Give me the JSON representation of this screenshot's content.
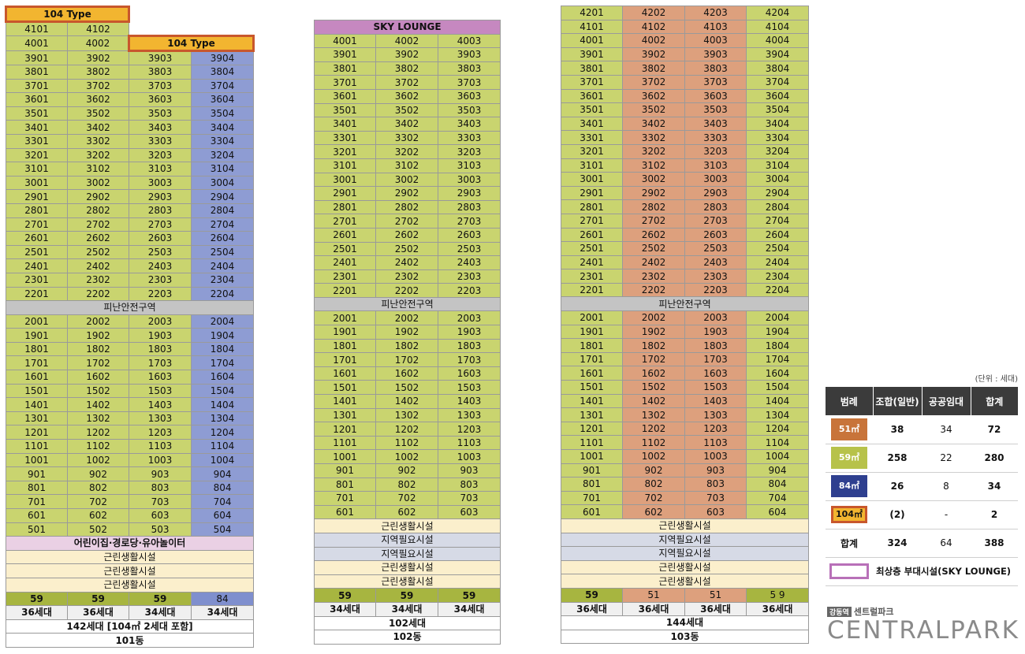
{
  "buildings": {
    "b101": {
      "type104_top": "104 Type",
      "type104_sub": "104 Type",
      "floor41": [
        "4101",
        "4102"
      ],
      "floor40": [
        "4001",
        "4002"
      ],
      "upper": [
        [
          "3901",
          "3902",
          "3903",
          "3904"
        ],
        [
          "3801",
          "3802",
          "3803",
          "3804"
        ],
        [
          "3701",
          "3702",
          "3703",
          "3704"
        ],
        [
          "3601",
          "3602",
          "3603",
          "3604"
        ],
        [
          "3501",
          "3502",
          "3503",
          "3504"
        ],
        [
          "3401",
          "3402",
          "3403",
          "3404"
        ],
        [
          "3301",
          "3302",
          "3303",
          "3304"
        ],
        [
          "3201",
          "3202",
          "3203",
          "3204"
        ],
        [
          "3101",
          "3102",
          "3103",
          "3104"
        ],
        [
          "3001",
          "3002",
          "3003",
          "3004"
        ],
        [
          "2901",
          "2902",
          "2903",
          "2904"
        ],
        [
          "2801",
          "2802",
          "2803",
          "2804"
        ],
        [
          "2701",
          "2702",
          "2703",
          "2704"
        ],
        [
          "2601",
          "2602",
          "2603",
          "2604"
        ],
        [
          "2501",
          "2502",
          "2503",
          "2504"
        ],
        [
          "2401",
          "2402",
          "2403",
          "2404"
        ],
        [
          "2301",
          "2302",
          "2303",
          "2304"
        ],
        [
          "2201",
          "2202",
          "2203",
          "2204"
        ]
      ],
      "refuge": "피난안전구역",
      "lower": [
        [
          "2001",
          "2002",
          "2003",
          "2004"
        ],
        [
          "1901",
          "1902",
          "1903",
          "1904"
        ],
        [
          "1801",
          "1802",
          "1803",
          "1804"
        ],
        [
          "1701",
          "1702",
          "1703",
          "1704"
        ],
        [
          "1601",
          "1602",
          "1603",
          "1604"
        ],
        [
          "1501",
          "1502",
          "1503",
          "1504"
        ],
        [
          "1401",
          "1402",
          "1403",
          "1404"
        ],
        [
          "1301",
          "1302",
          "1303",
          "1304"
        ],
        [
          "1201",
          "1202",
          "1203",
          "1204"
        ],
        [
          "1101",
          "1102",
          "1103",
          "1104"
        ],
        [
          "1001",
          "1002",
          "1003",
          "1004"
        ],
        [
          "901",
          "902",
          "903",
          "904"
        ],
        [
          "801",
          "802",
          "803",
          "804"
        ],
        [
          "701",
          "702",
          "703",
          "704"
        ],
        [
          "601",
          "602",
          "603",
          "604"
        ],
        [
          "501",
          "502",
          "503",
          "504"
        ]
      ],
      "facilities": [
        "어린이집·경로당·유아놀이터",
        "근린생활시설",
        "근린생활시설",
        "근린생활시설"
      ],
      "areas": [
        "59",
        "59",
        "59",
        "84"
      ],
      "counts": [
        "36세대",
        "36세대",
        "34세대",
        "34세대"
      ],
      "total": "142세대 [104㎡ 2세대 포함]",
      "name": "101동"
    },
    "b102": {
      "lounge": "SKY LOUNGE",
      "upper": [
        [
          "4001",
          "4002",
          "4003"
        ],
        [
          "3901",
          "3902",
          "3903"
        ],
        [
          "3801",
          "3802",
          "3803"
        ],
        [
          "3701",
          "3702",
          "3703"
        ],
        [
          "3601",
          "3602",
          "3603"
        ],
        [
          "3501",
          "3502",
          "3503"
        ],
        [
          "3401",
          "3402",
          "3403"
        ],
        [
          "3301",
          "3302",
          "3303"
        ],
        [
          "3201",
          "3202",
          "3203"
        ],
        [
          "3101",
          "3102",
          "3103"
        ],
        [
          "3001",
          "3002",
          "3003"
        ],
        [
          "2901",
          "2902",
          "2903"
        ],
        [
          "2801",
          "2802",
          "2803"
        ],
        [
          "2701",
          "2702",
          "2703"
        ],
        [
          "2601",
          "2602",
          "2603"
        ],
        [
          "2501",
          "2502",
          "2503"
        ],
        [
          "2401",
          "2402",
          "2403"
        ],
        [
          "2301",
          "2302",
          "2303"
        ],
        [
          "2201",
          "2202",
          "2203"
        ]
      ],
      "refuge": "피난안전구역",
      "lower": [
        [
          "2001",
          "2002",
          "2003"
        ],
        [
          "1901",
          "1902",
          "1903"
        ],
        [
          "1801",
          "1802",
          "1803"
        ],
        [
          "1701",
          "1702",
          "1703"
        ],
        [
          "1601",
          "1602",
          "1603"
        ],
        [
          "1501",
          "1502",
          "1503"
        ],
        [
          "1401",
          "1402",
          "1403"
        ],
        [
          "1301",
          "1302",
          "1303"
        ],
        [
          "1201",
          "1202",
          "1203"
        ],
        [
          "1101",
          "1102",
          "1103"
        ],
        [
          "1001",
          "1002",
          "1003"
        ],
        [
          "901",
          "902",
          "903"
        ],
        [
          "801",
          "802",
          "803"
        ],
        [
          "701",
          "702",
          "703"
        ],
        [
          "601",
          "602",
          "603"
        ]
      ],
      "facilities": [
        "근린생활시설",
        "지역필요시설",
        "지역필요시설",
        "근린생활시설",
        "근린생활시설"
      ],
      "areas": [
        "59",
        "59",
        "59"
      ],
      "counts": [
        "34세대",
        "34세대",
        "34세대"
      ],
      "total": "102세대",
      "name": "102동"
    },
    "b103": {
      "upper": [
        [
          "4201",
          "4202",
          "4203",
          "4204"
        ],
        [
          "4101",
          "4102",
          "4103",
          "4104"
        ],
        [
          "4001",
          "4002",
          "4003",
          "4004"
        ],
        [
          "3901",
          "3902",
          "3903",
          "3904"
        ],
        [
          "3801",
          "3802",
          "3803",
          "3804"
        ],
        [
          "3701",
          "3702",
          "3703",
          "3704"
        ],
        [
          "3601",
          "3602",
          "3603",
          "3604"
        ],
        [
          "3501",
          "3502",
          "3503",
          "3504"
        ],
        [
          "3401",
          "3402",
          "3403",
          "3404"
        ],
        [
          "3301",
          "3302",
          "3303",
          "3304"
        ],
        [
          "3201",
          "3202",
          "3203",
          "3204"
        ],
        [
          "3101",
          "3102",
          "3103",
          "3104"
        ],
        [
          "3001",
          "3002",
          "3003",
          "3004"
        ],
        [
          "2901",
          "2902",
          "2903",
          "2904"
        ],
        [
          "2801",
          "2802",
          "2803",
          "2804"
        ],
        [
          "2701",
          "2702",
          "2703",
          "2704"
        ],
        [
          "2601",
          "2602",
          "2603",
          "2604"
        ],
        [
          "2501",
          "2502",
          "2503",
          "2504"
        ],
        [
          "2401",
          "2402",
          "2403",
          "2404"
        ],
        [
          "2301",
          "2302",
          "2303",
          "2304"
        ],
        [
          "2201",
          "2202",
          "2203",
          "2204"
        ]
      ],
      "refuge": "피난안전구역",
      "lower": [
        [
          "2001",
          "2002",
          "2003",
          "2004"
        ],
        [
          "1901",
          "1902",
          "1903",
          "1904"
        ],
        [
          "1801",
          "1802",
          "1803",
          "1804"
        ],
        [
          "1701",
          "1702",
          "1703",
          "1704"
        ],
        [
          "1601",
          "1602",
          "1603",
          "1604"
        ],
        [
          "1501",
          "1502",
          "1503",
          "1504"
        ],
        [
          "1401",
          "1402",
          "1403",
          "1404"
        ],
        [
          "1301",
          "1302",
          "1303",
          "1304"
        ],
        [
          "1201",
          "1202",
          "1203",
          "1204"
        ],
        [
          "1101",
          "1102",
          "1103",
          "1104"
        ],
        [
          "1001",
          "1002",
          "1003",
          "1004"
        ],
        [
          "901",
          "902",
          "903",
          "904"
        ],
        [
          "801",
          "802",
          "803",
          "804"
        ],
        [
          "701",
          "702",
          "703",
          "704"
        ],
        [
          "601",
          "602",
          "603",
          "604"
        ]
      ],
      "facilities": [
        "근린생활시설",
        "지역필요시설",
        "지역필요시설",
        "근린생활시설",
        "근린생활시설"
      ],
      "areas": [
        "59",
        "51",
        "51",
        "5 9"
      ],
      "counts": [
        "36세대",
        "36세대",
        "36세대",
        "36세대"
      ],
      "total": "144세대",
      "name": "103동"
    }
  },
  "legend": {
    "unit": "(단위 : 세대)",
    "headers": [
      "범례",
      "조합(일반)",
      "공공임대",
      "합계"
    ],
    "rows": [
      {
        "label": "51㎡",
        "color": "#c8743a",
        "union": "38",
        "rental": "34",
        "total": "72"
      },
      {
        "label": "59㎡",
        "color": "#b7c24a",
        "union": "258",
        "rental": "22",
        "total": "280"
      },
      {
        "label": "84㎡",
        "color": "#2e3f8f",
        "union": "26",
        "rental": "8",
        "total": "34"
      },
      {
        "label": "104㎡",
        "color": "#f2b530",
        "union": "(2)",
        "rental": "-",
        "total": "2"
      }
    ],
    "sum": {
      "label": "합계",
      "union": "324",
      "rental": "64",
      "total": "388"
    },
    "lounge_note": "최상층 부대시설(SKY LOUNGE)"
  },
  "brand": {
    "badge": "강동역",
    "sub": "센트럴파크",
    "name": "CENTRALPARK"
  }
}
